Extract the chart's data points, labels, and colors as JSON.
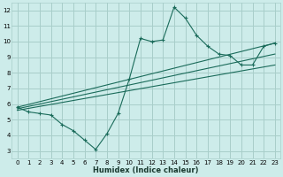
{
  "xlabel": "Humidex (Indice chaleur)",
  "background_color": "#cdecea",
  "grid_color": "#a8ceca",
  "line_color": "#1a6b5a",
  "xlim": [
    -0.5,
    23.5
  ],
  "ylim": [
    2.5,
    12.5
  ],
  "yticks": [
    3,
    4,
    5,
    6,
    7,
    8,
    9,
    10,
    11,
    12
  ],
  "xticks": [
    0,
    1,
    2,
    3,
    4,
    5,
    6,
    7,
    8,
    9,
    10,
    11,
    12,
    13,
    14,
    15,
    16,
    17,
    18,
    19,
    20,
    21,
    22,
    23
  ],
  "line1_x": [
    0,
    1,
    2,
    3,
    4,
    5,
    6,
    7,
    8,
    9,
    10,
    11,
    12,
    13,
    14,
    15,
    16,
    17,
    18,
    19,
    20,
    21,
    22,
    23
  ],
  "line1_y": [
    5.8,
    5.5,
    5.4,
    5.3,
    4.7,
    4.3,
    3.7,
    3.1,
    4.1,
    5.4,
    7.6,
    10.2,
    10.0,
    10.1,
    12.2,
    11.5,
    10.4,
    9.7,
    9.2,
    9.1,
    8.5,
    8.5,
    9.7,
    9.9
  ],
  "line2_x": [
    0,
    23
  ],
  "line2_y": [
    5.8,
    9.9
  ],
  "line3_x": [
    0,
    23
  ],
  "line3_y": [
    5.7,
    9.2
  ],
  "line4_x": [
    0,
    23
  ],
  "line4_y": [
    5.6,
    8.5
  ]
}
